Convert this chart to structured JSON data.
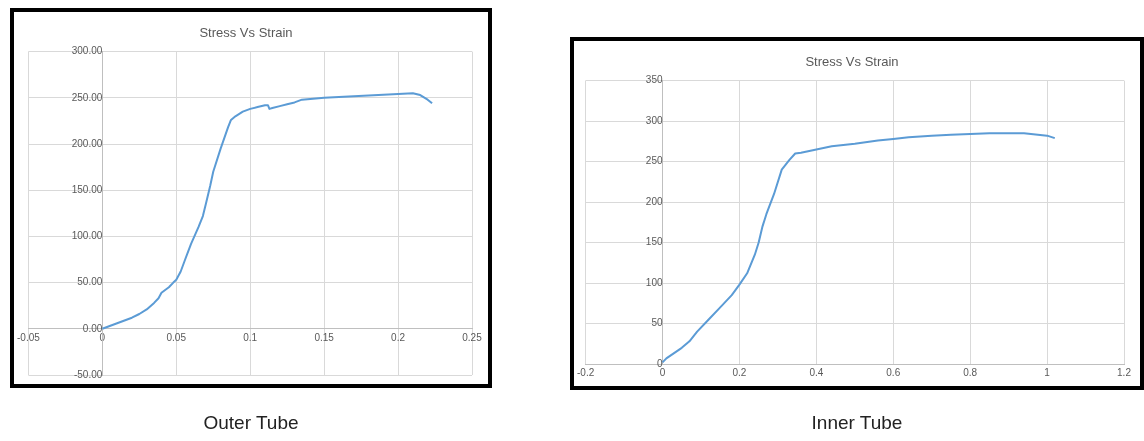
{
  "chart_data": [
    {
      "type": "line",
      "title": "Stress Vs Strain",
      "annotations": [
        "Outer Tube"
      ],
      "grid": true,
      "legend": false,
      "marker": "none",
      "xlim": [
        -0.05,
        0.25
      ],
      "xticks": [
        -0.05,
        0,
        0.05,
        0.1,
        0.15,
        0.2,
        0.25
      ],
      "ylim": [
        -50,
        300
      ],
      "yticks": [
        {
          "value": -50,
          "label": "-50.00"
        },
        {
          "value": 0,
          "label": "0.00"
        },
        {
          "value": 50,
          "label": "50.00"
        },
        {
          "value": 100,
          "label": "100.00"
        },
        {
          "value": 150,
          "label": "150.00"
        },
        {
          "value": 200,
          "label": "200.00"
        },
        {
          "value": 250,
          "label": "250.00"
        },
        {
          "value": 300,
          "label": "300.00"
        }
      ],
      "series": [
        {
          "color": "#5b9bd5",
          "x": [
            0,
            0.01,
            0.02,
            0.025,
            0.03,
            0.035,
            0.038,
            0.04,
            0.045,
            0.048,
            0.05,
            0.053,
            0.056,
            0.06,
            0.065,
            0.068,
            0.07,
            0.073,
            0.075,
            0.08,
            0.085,
            0.087,
            0.09,
            0.095,
            0.1,
            0.105,
            0.11,
            0.112,
            0.113,
            0.115,
            0.12,
            0.125,
            0.13,
            0.135,
            0.15,
            0.2,
            0.21,
            0.215,
            0.22,
            0.223
          ],
          "values": [
            0,
            6,
            12,
            16,
            21,
            28,
            33,
            39,
            45,
            50,
            53,
            62,
            75,
            92,
            110,
            122,
            135,
            155,
            170,
            195,
            218,
            226,
            230,
            235,
            238,
            240,
            242,
            242,
            238,
            239,
            241,
            243,
            245,
            248,
            250,
            254,
            255,
            253,
            248,
            244
          ]
        }
      ]
    },
    {
      "type": "line",
      "title": "Stress Vs Strain",
      "annotations": [
        "Inner Tube"
      ],
      "grid": true,
      "legend": false,
      "marker": "none",
      "xlim": [
        -0.2,
        1.2
      ],
      "xticks": [
        -0.2,
        0,
        0.2,
        0.4,
        0.6,
        0.8,
        1,
        1.2
      ],
      "ylim": [
        0,
        350
      ],
      "yticks": [
        0,
        50,
        100,
        150,
        200,
        250,
        300,
        350
      ],
      "series": [
        {
          "color": "#5b9bd5",
          "x": [
            0,
            0.01,
            0.05,
            0.07,
            0.09,
            0.12,
            0.15,
            0.18,
            0.2,
            0.22,
            0.24,
            0.25,
            0.26,
            0.27,
            0.29,
            0.31,
            0.33,
            0.345,
            0.36,
            0.4,
            0.44,
            0.5,
            0.56,
            0.6,
            0.64,
            0.7,
            0.75,
            0.85,
            0.94,
            1,
            1.02
          ],
          "values": [
            2,
            7,
            20,
            28,
            40,
            55,
            70,
            85,
            98,
            112,
            135,
            150,
            170,
            185,
            210,
            240,
            252,
            260,
            261,
            265,
            269,
            272,
            276,
            278,
            280,
            282,
            283,
            285,
            285,
            282,
            279
          ]
        }
      ]
    }
  ]
}
